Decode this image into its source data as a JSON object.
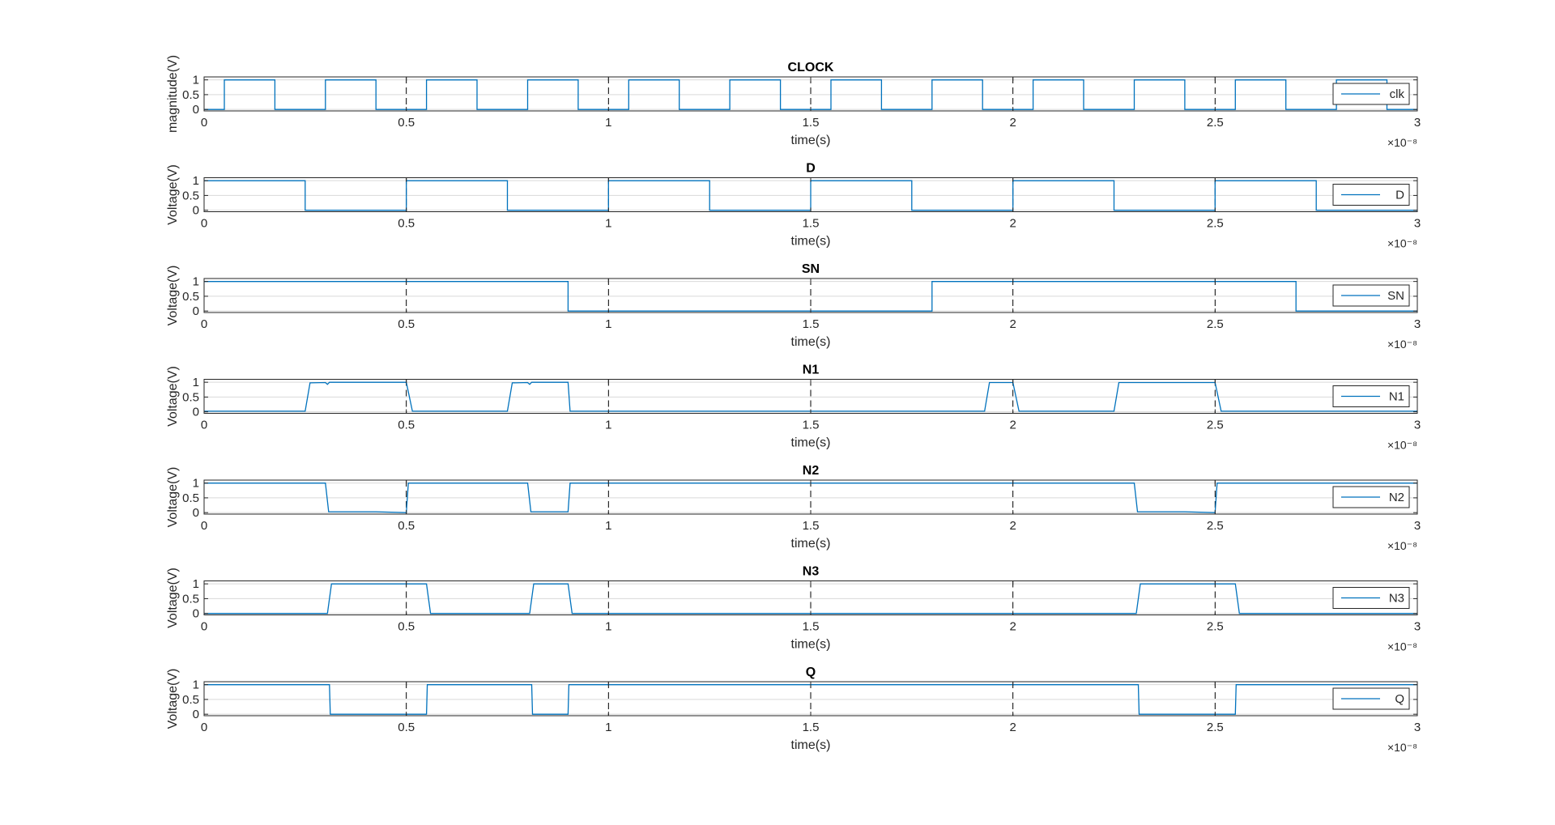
{
  "figure": {
    "background": "#ffffff"
  },
  "style": {
    "line_color": "#0072BD",
    "axis_color": "#262626",
    "grid_color": "#d9d9d9",
    "dash_color": "#000000"
  },
  "chart_data": [
    {
      "type": "line",
      "title": "CLOCK",
      "xlabel": "time(s)",
      "ylabel": "magnitude(V)",
      "xlim": [
        0,
        3
      ],
      "ylim": [
        -0.05,
        1.1
      ],
      "x_exponent_label": "×10⁻⁸",
      "xticks": [
        "0",
        "0.5",
        "1",
        "1.5",
        "2",
        "2.5",
        "3"
      ],
      "yticks": [
        "0",
        "0.5",
        "1"
      ],
      "legend": {
        "label": "clk",
        "position": "right"
      },
      "grid": true,
      "series": [
        {
          "name": "clk",
          "x": [
            0,
            0.05,
            0.05,
            0.175,
            0.175,
            0.3,
            0.3,
            0.425,
            0.425,
            0.55,
            0.55,
            0.675,
            0.675,
            0.8,
            0.8,
            0.925,
            0.925,
            1.05,
            1.05,
            1.175,
            1.175,
            1.3,
            1.3,
            1.425,
            1.425,
            1.55,
            1.55,
            1.675,
            1.675,
            1.8,
            1.8,
            1.925,
            1.925,
            2.05,
            2.05,
            2.175,
            2.175,
            2.3,
            2.3,
            2.425,
            2.425,
            2.55,
            2.55,
            2.675,
            2.675,
            2.8,
            2.8,
            2.925,
            2.925,
            3
          ],
          "y": [
            0,
            0,
            1,
            1,
            0,
            0,
            1,
            1,
            0,
            0,
            1,
            1,
            0,
            0,
            1,
            1,
            0,
            0,
            1,
            1,
            0,
            0,
            1,
            1,
            0,
            0,
            1,
            1,
            0,
            0,
            1,
            1,
            0,
            0,
            1,
            1,
            0,
            0,
            1,
            1,
            0,
            0,
            1,
            1,
            0,
            0,
            1,
            1,
            0,
            0
          ]
        }
      ]
    },
    {
      "type": "line",
      "title": "D",
      "xlabel": "time(s)",
      "ylabel": "Voltage(V)",
      "xlim": [
        0,
        3
      ],
      "ylim": [
        -0.05,
        1.1
      ],
      "x_exponent_label": "×10⁻⁸",
      "xticks": [
        "0",
        "0.5",
        "1",
        "1.5",
        "2",
        "2.5",
        "3"
      ],
      "yticks": [
        "0",
        "0.5",
        "1"
      ],
      "legend": {
        "label": "D",
        "position": "right"
      },
      "grid": true,
      "series": [
        {
          "name": "D",
          "x": [
            0,
            0.25,
            0.25,
            0.5,
            0.5,
            0.75,
            0.75,
            1.0,
            1.0,
            1.25,
            1.25,
            1.5,
            1.5,
            1.75,
            1.75,
            2.0,
            2.0,
            2.25,
            2.25,
            2.5,
            2.5,
            2.75,
            2.75,
            3
          ],
          "y": [
            1,
            1,
            0,
            0,
            1,
            1,
            0,
            0,
            1,
            1,
            0,
            0,
            1,
            1,
            0,
            0,
            1,
            1,
            0,
            0,
            1,
            1,
            0,
            0
          ]
        }
      ]
    },
    {
      "type": "line",
      "title": "SN",
      "xlabel": "time(s)",
      "ylabel": "Voltage(V)",
      "xlim": [
        0,
        3
      ],
      "ylim": [
        -0.05,
        1.1
      ],
      "x_exponent_label": "×10⁻⁸",
      "xticks": [
        "0",
        "0.5",
        "1",
        "1.5",
        "2",
        "2.5",
        "3"
      ],
      "yticks": [
        "0",
        "0.5",
        "1"
      ],
      "legend": {
        "label": "SN",
        "position": "right"
      },
      "grid": true,
      "series": [
        {
          "name": "SN",
          "x": [
            0,
            0.9,
            0.9,
            1.8,
            1.8,
            2.7,
            2.7,
            3
          ],
          "y": [
            1,
            1,
            0,
            0,
            1,
            1,
            0,
            0
          ]
        }
      ]
    },
    {
      "type": "line",
      "title": "N1",
      "xlabel": "time(s)",
      "ylabel": "Voltage(V)",
      "xlim": [
        0,
        3
      ],
      "ylim": [
        -0.05,
        1.1
      ],
      "x_exponent_label": "×10⁻⁸",
      "xticks": [
        "0",
        "0.5",
        "1",
        "1.5",
        "2",
        "2.5",
        "3"
      ],
      "yticks": [
        "0",
        "0.5",
        "1"
      ],
      "legend": {
        "label": "N1",
        "position": "right"
      },
      "grid": true,
      "series": [
        {
          "name": "N1",
          "x": [
            0,
            0.25,
            0.262,
            0.3,
            0.305,
            0.31,
            0.5,
            0.515,
            0.75,
            0.762,
            0.8,
            0.805,
            0.81,
            0.9,
            0.905,
            1.93,
            1.942,
            2.0,
            2.015,
            2.25,
            2.262,
            2.5,
            2.515,
            3
          ],
          "y": [
            0.02,
            0.02,
            0.98,
            0.99,
            0.93,
            1.0,
            1.0,
            0.02,
            0.02,
            0.98,
            0.99,
            0.93,
            1.0,
            1.0,
            0.02,
            0.02,
            0.99,
            0.99,
            0.02,
            0.02,
            0.99,
            0.99,
            0.02,
            0.02
          ]
        }
      ]
    },
    {
      "type": "line",
      "title": "N2",
      "xlabel": "time(s)",
      "ylabel": "Voltage(V)",
      "xlim": [
        0,
        3
      ],
      "ylim": [
        -0.05,
        1.1
      ],
      "x_exponent_label": "×10⁻⁸",
      "xticks": [
        "0",
        "0.5",
        "1",
        "1.5",
        "2",
        "2.5",
        "3"
      ],
      "yticks": [
        "0",
        "0.5",
        "1"
      ],
      "legend": {
        "label": "N2",
        "position": "right"
      },
      "grid": true,
      "series": [
        {
          "name": "N2",
          "x": [
            0,
            0.3,
            0.308,
            0.425,
            0.5,
            0.505,
            0.8,
            0.808,
            0.9,
            0.905,
            2.3,
            2.308,
            2.425,
            2.5,
            2.505,
            3
          ],
          "y": [
            1,
            1,
            0.03,
            0.03,
            0,
            1,
            1,
            0.03,
            0.03,
            1,
            1,
            0.03,
            0.03,
            0,
            1,
            1
          ]
        }
      ]
    },
    {
      "type": "line",
      "title": "N3",
      "xlabel": "time(s)",
      "ylabel": "Voltage(V)",
      "xlim": [
        0,
        3
      ],
      "ylim": [
        -0.05,
        1.1
      ],
      "x_exponent_label": "×10⁻⁸",
      "xticks": [
        "0",
        "0.5",
        "1",
        "1.5",
        "2",
        "2.5",
        "3"
      ],
      "yticks": [
        "0",
        "0.5",
        "1"
      ],
      "legend": {
        "label": "N3",
        "position": "right"
      },
      "grid": true,
      "series": [
        {
          "name": "N3",
          "x": [
            0,
            0.305,
            0.315,
            0.55,
            0.56,
            0.805,
            0.815,
            0.9,
            0.91,
            2.305,
            2.315,
            2.55,
            2.56,
            3
          ],
          "y": [
            0,
            0,
            1,
            1,
            0,
            0,
            1,
            1,
            0,
            0,
            1,
            1,
            0,
            0
          ]
        }
      ]
    },
    {
      "type": "line",
      "title": "Q",
      "xlabel": "time(s)",
      "ylabel": "Voltage(V)",
      "xlim": [
        0,
        3
      ],
      "ylim": [
        -0.05,
        1.1
      ],
      "x_exponent_label": "×10⁻⁸",
      "xticks": [
        "0",
        "0.5",
        "1",
        "1.5",
        "2",
        "2.5",
        "3"
      ],
      "yticks": [
        "0",
        "0.5",
        "1"
      ],
      "legend": {
        "label": "Q",
        "position": "right"
      },
      "grid": true,
      "series": [
        {
          "name": "Q",
          "x": [
            0,
            0.31,
            0.312,
            0.55,
            0.552,
            0.81,
            0.812,
            0.9,
            0.902,
            2.31,
            2.312,
            2.55,
            2.552,
            3
          ],
          "y": [
            1,
            1,
            0,
            0,
            1,
            1,
            0,
            0,
            1,
            1,
            0,
            0,
            1,
            1
          ]
        }
      ]
    }
  ]
}
